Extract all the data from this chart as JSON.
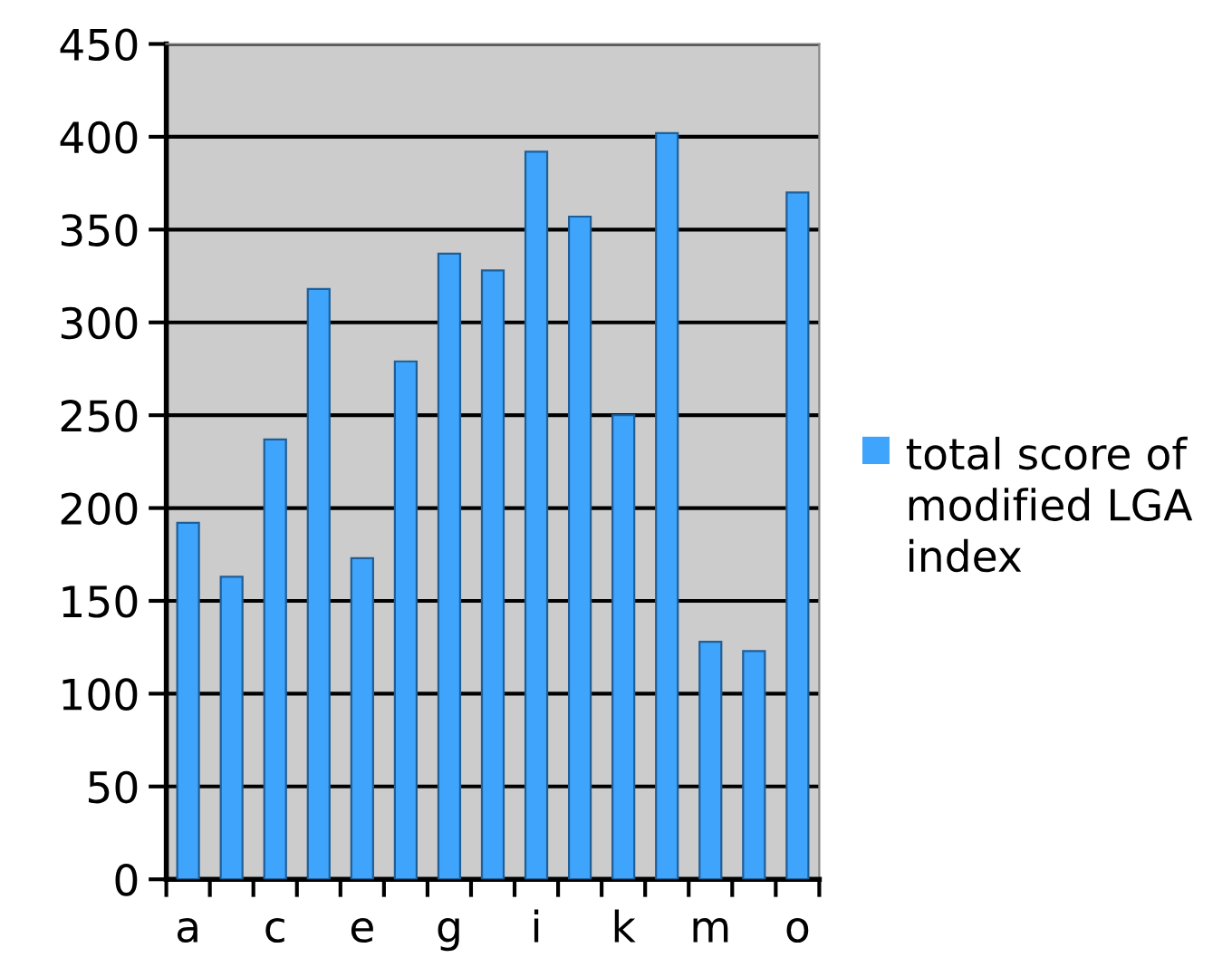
{
  "chart_data": {
    "type": "bar",
    "categories": [
      "a",
      null,
      "c",
      null,
      "e",
      null,
      "g",
      null,
      "i",
      null,
      "k",
      null,
      "m",
      null,
      "o"
    ],
    "series": [
      {
        "name": "total score of modified LGA index",
        "color": "#3fa4fb",
        "values": [
          192,
          163,
          237,
          318,
          173,
          279,
          337,
          328,
          392,
          357,
          250,
          402,
          128,
          123,
          370
        ]
      }
    ],
    "ylim": [
      0,
      450
    ],
    "yticks": [
      0,
      50,
      100,
      150,
      200,
      250,
      300,
      350,
      400,
      450
    ],
    "grid": "y",
    "legend": "right"
  }
}
